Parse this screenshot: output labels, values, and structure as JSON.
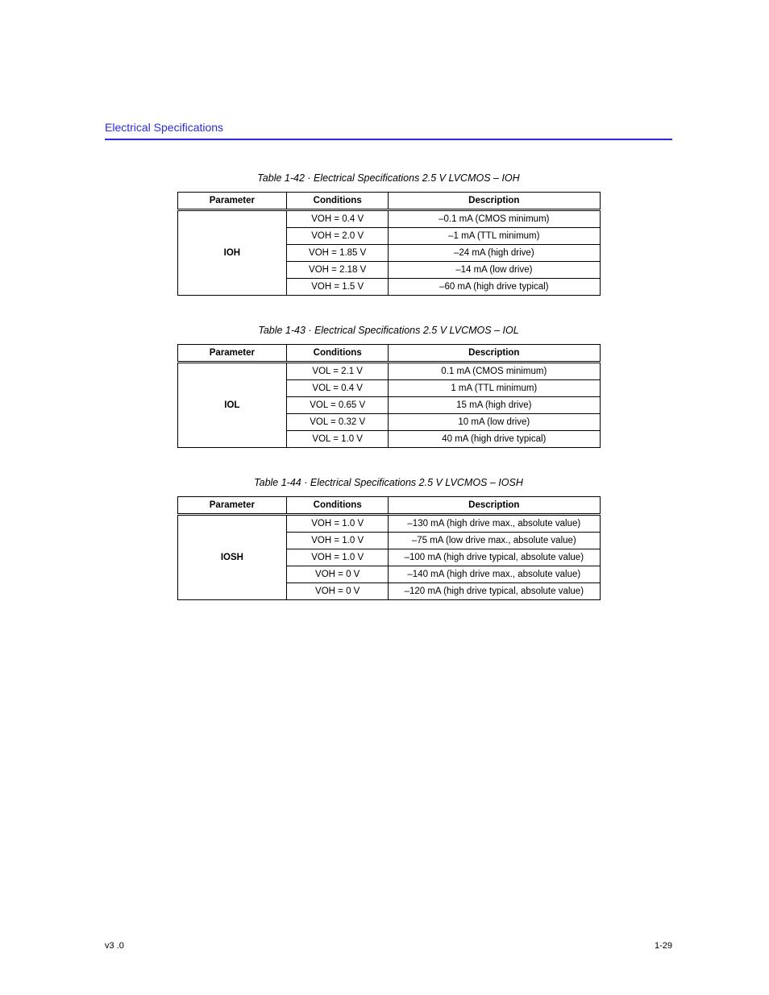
{
  "header": {
    "title": "Electrical Specifications",
    "rule_color": "#2a2ae0"
  },
  "tables": [
    {
      "caption": "Table 1-42 · Electrical Specifications 2.5 V LVCMOS – IOH",
      "columns": [
        "Parameter",
        "Conditions",
        "Description"
      ],
      "param": "IOH",
      "rows": [
        {
          "cond": "VOH = 0.4 V",
          "desc": "–0.1 mA (CMOS minimum)"
        },
        {
          "cond": "VOH = 2.0 V",
          "desc": "–1 mA (TTL minimum)"
        },
        {
          "cond": "VOH = 1.85 V",
          "desc": "–24 mA (high drive)"
        },
        {
          "cond": "VOH = 2.18 V",
          "desc": "–14 mA (low drive)"
        },
        {
          "cond": "VOH = 1.5 V",
          "desc": "–60 mA (high drive typical)"
        }
      ]
    },
    {
      "caption": "Table 1-43 · Electrical Specifications 2.5 V LVCMOS – IOL",
      "columns": [
        "Parameter",
        "Conditions",
        "Description"
      ],
      "param": "IOL",
      "rows": [
        {
          "cond": "VOL = 2.1 V",
          "desc": "0.1 mA (CMOS minimum)"
        },
        {
          "cond": "VOL = 0.4 V",
          "desc": "1 mA (TTL minimum)"
        },
        {
          "cond": "VOL = 0.65 V",
          "desc": "15 mA (high drive)"
        },
        {
          "cond": "VOL = 0.32 V",
          "desc": "10 mA (low drive)"
        },
        {
          "cond": "VOL = 1.0 V",
          "desc": "40 mA (high drive typical)"
        }
      ]
    },
    {
      "caption": "Table 1-44 · Electrical Specifications 2.5 V LVCMOS – IOSH",
      "columns": [
        "Parameter",
        "Conditions",
        "Description"
      ],
      "param": "IOSH",
      "rows": [
        {
          "cond": "VOH = 1.0 V",
          "desc": "–130 mA (high drive max., absolute value)"
        },
        {
          "cond": "VOH = 1.0 V",
          "desc": "–75 mA (low drive max., absolute value)"
        },
        {
          "cond": "VOH = 1.0 V",
          "desc": "–100 mA (high drive typical, absolute value)"
        },
        {
          "cond": "VOH = 0 V",
          "desc": "–140 mA (high drive max., absolute value)"
        },
        {
          "cond": "VOH = 0 V",
          "desc": "–120 mA (high drive typical, absolute value)"
        }
      ]
    }
  ],
  "footer": {
    "release": "v3 .0",
    "page_number": "1-29"
  }
}
